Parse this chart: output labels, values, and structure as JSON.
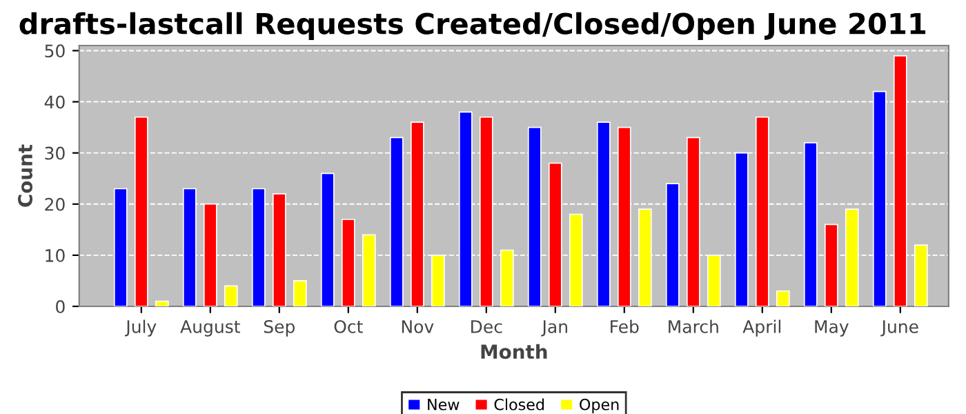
{
  "chart_data": {
    "type": "bar",
    "title": "drafts-lastcall Requests Created/Closed/Open June 2011",
    "xlabel": "Month",
    "ylabel": "Count",
    "categories": [
      "July",
      "August",
      "Sep",
      "Oct",
      "Nov",
      "Dec",
      "Jan",
      "Feb",
      "March",
      "April",
      "May",
      "June"
    ],
    "series": [
      {
        "name": "New",
        "color": "#0000ff",
        "values": [
          23,
          23,
          23,
          26,
          33,
          38,
          35,
          36,
          24,
          30,
          32,
          42
        ]
      },
      {
        "name": "Closed",
        "color": "#ff0000",
        "values": [
          37,
          20,
          22,
          17,
          36,
          37,
          28,
          35,
          33,
          37,
          16,
          49
        ]
      },
      {
        "name": "Open",
        "color": "#ffff00",
        "values": [
          1,
          4,
          5,
          14,
          10,
          11,
          18,
          19,
          10,
          3,
          19,
          12
        ]
      }
    ],
    "ylim": [
      0,
      51
    ],
    "yticks": [
      0,
      10,
      20,
      30,
      40,
      50
    ],
    "grid": "y",
    "legend": "bottom"
  }
}
